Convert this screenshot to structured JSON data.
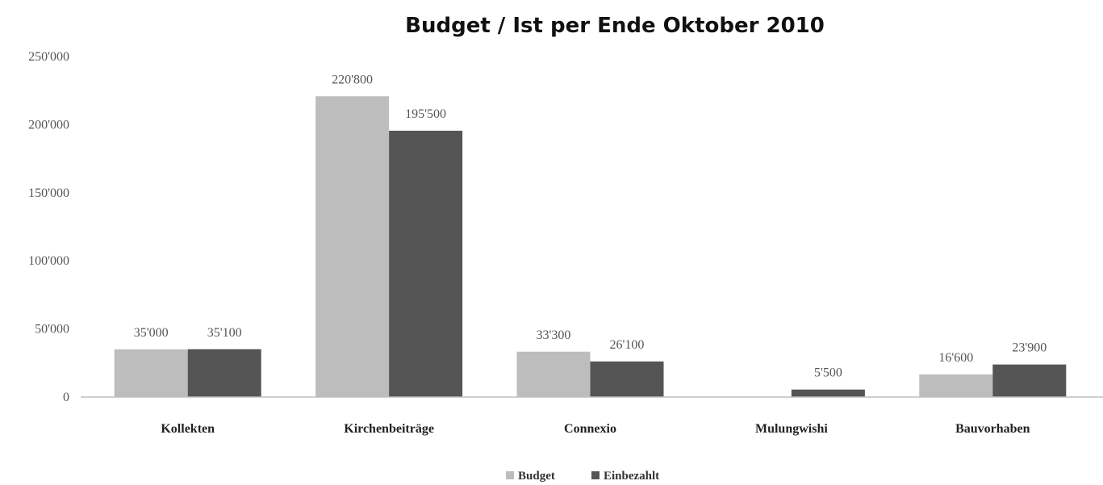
{
  "chart_data": {
    "type": "bar",
    "title": "Budget / Ist per Ende Oktober 2010",
    "xlabel": "",
    "ylabel": "",
    "categories": [
      "Kollekten",
      "Kirchenbeiträge",
      "Connexio",
      "Mulungwishi",
      "Bauvorhaben"
    ],
    "series": [
      {
        "name": "Budget",
        "color": "#bdbdbd",
        "values": [
          35000,
          220800,
          33300,
          0,
          16600
        ],
        "labels": [
          "35'000",
          "220'800",
          "33'300",
          "",
          "16'600"
        ]
      },
      {
        "name": "Einbezahlt",
        "color": "#555555",
        "values": [
          35100,
          195500,
          26100,
          5500,
          23900
        ],
        "labels": [
          "35'100",
          "195'500",
          "26'100",
          "5'500",
          "23'900"
        ]
      }
    ],
    "ylim": [
      0,
      250000
    ],
    "yticks": [
      0,
      50000,
      100000,
      150000,
      200000,
      250000
    ],
    "ytick_labels": [
      "0",
      "50'000",
      "100'000",
      "150'000",
      "200'000",
      "250'000"
    ],
    "grid": false,
    "legend_position": "bottom"
  }
}
